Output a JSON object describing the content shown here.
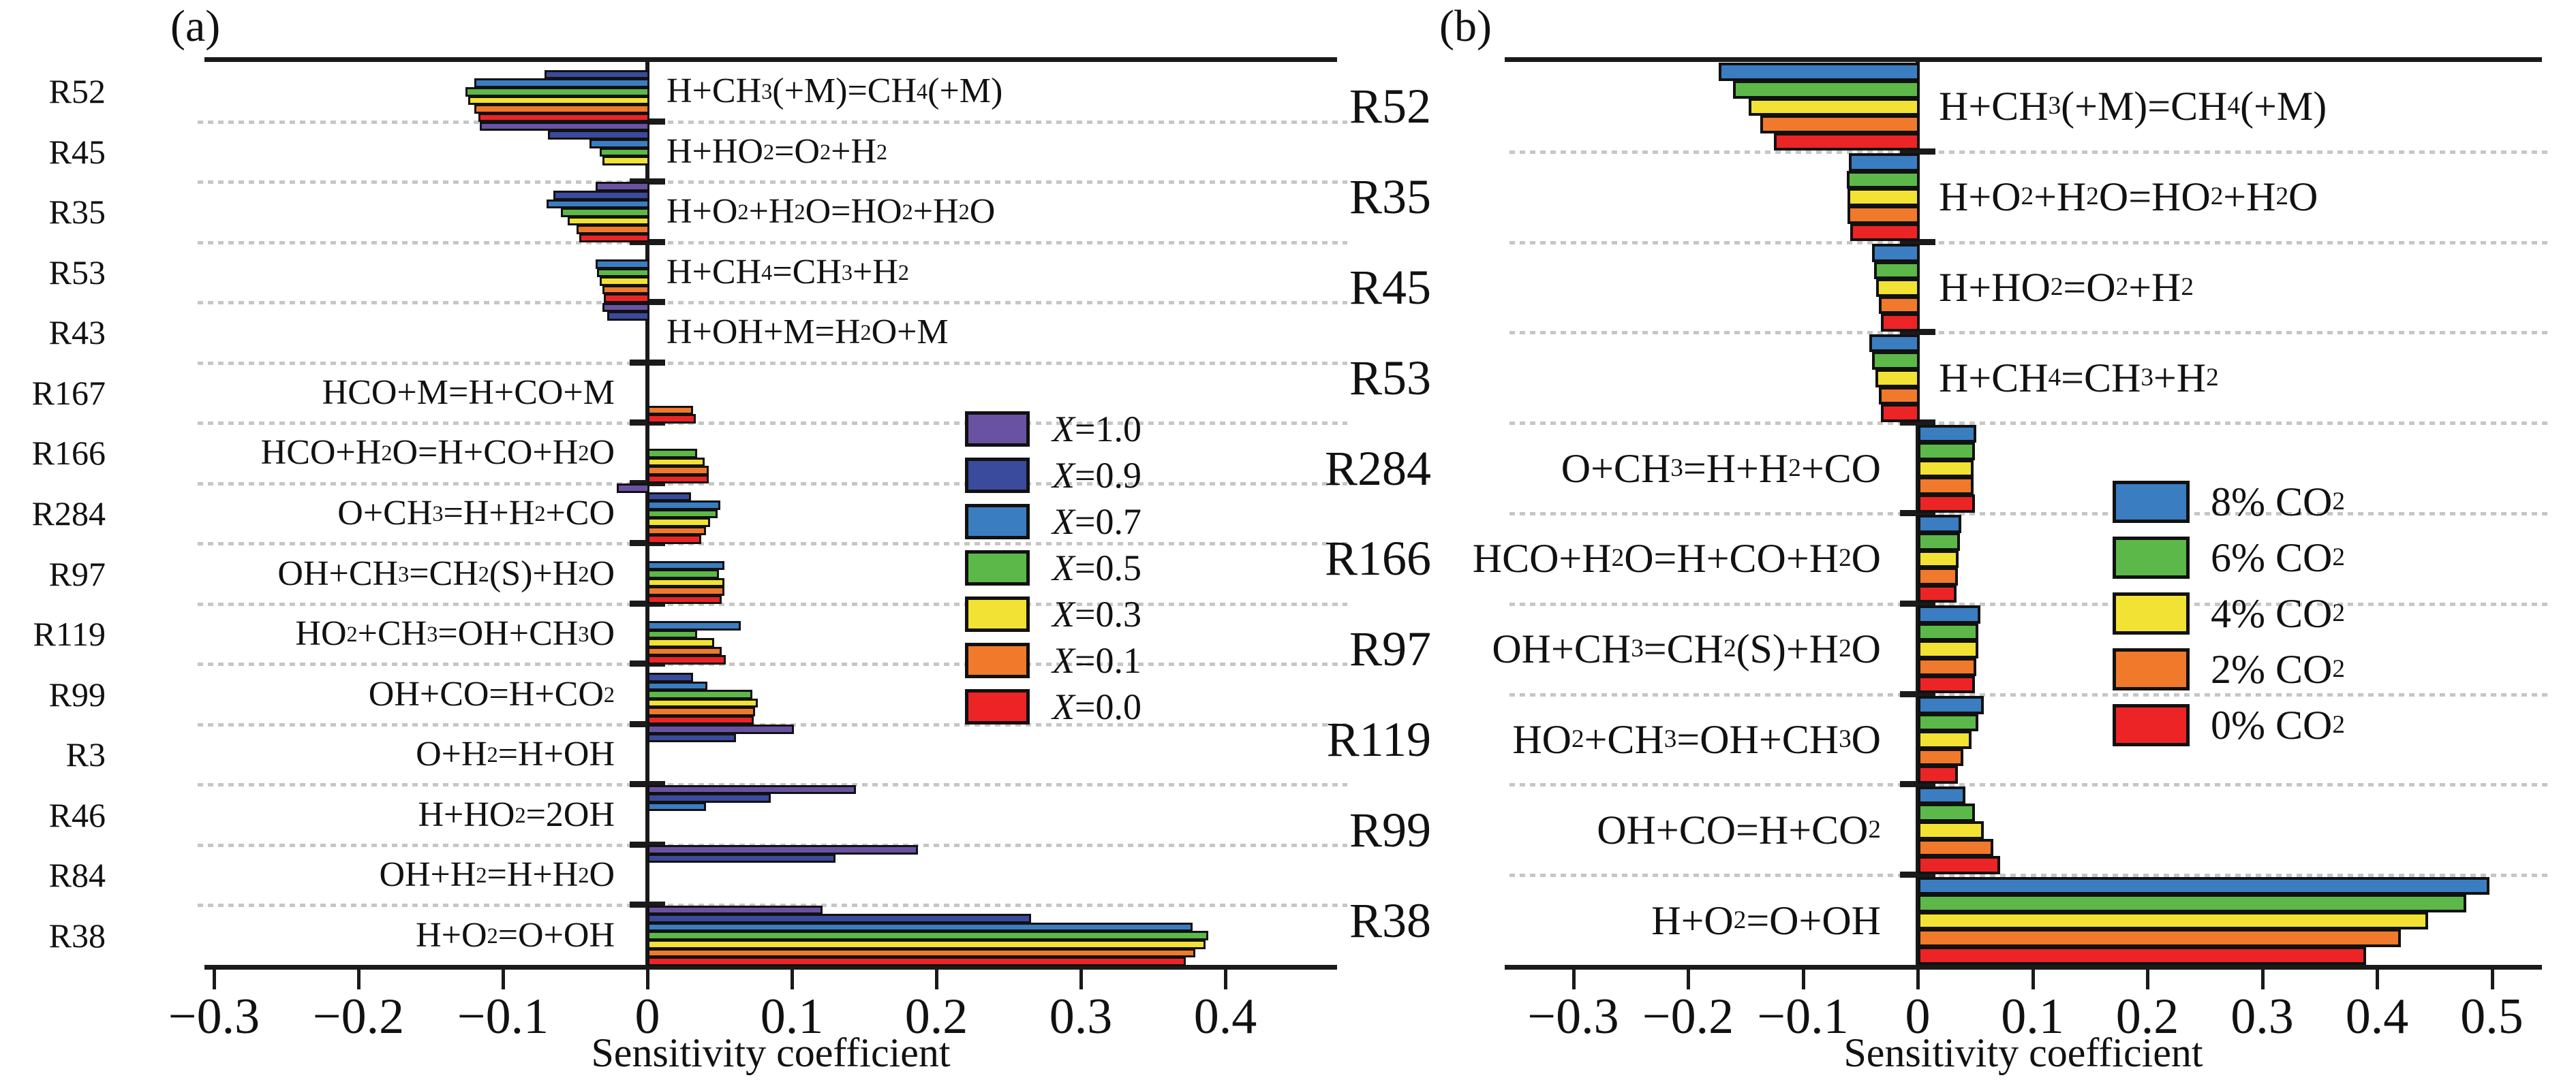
{
  "chart_data": [
    {
      "type": "bar",
      "orientation": "horizontal",
      "title": "(a)",
      "xlabel": "Sensitivity coefficient",
      "xlim": [
        -0.31,
        0.48
      ],
      "xtick_labels": [
        "−0.3",
        "−0.2",
        "−0.1",
        "0",
        "0.1",
        "0.2",
        "0.3",
        "0.4"
      ],
      "xtick_values": [
        -0.3,
        -0.2,
        -0.1,
        0,
        0.1,
        0.2,
        0.3,
        0.4
      ],
      "grid": "dotted-row-separators",
      "legend_position": "inside-right",
      "series": [
        {
          "name": "X=1.0",
          "color": "#6a52a3"
        },
        {
          "name": "X=0.9",
          "color": "#3a4a9d"
        },
        {
          "name": "X=0.7",
          "color": "#3b7dc1"
        },
        {
          "name": "X=0.5",
          "color": "#5cb848"
        },
        {
          "name": "X=0.3",
          "color": "#f2e234"
        },
        {
          "name": "X=0.1",
          "color": "#f0792b"
        },
        {
          "name": "X=0.0",
          "color": "#ec2426"
        }
      ],
      "rows": [
        {
          "id": "R52",
          "reaction": "H+CH3(+M)=CH4(+M)",
          "label_side": "right",
          "values": [
            null,
            -0.071,
            -0.12,
            -0.126,
            -0.124,
            -0.12,
            -0.117
          ]
        },
        {
          "id": "R45",
          "reaction": "H+HO2=O2+H2",
          "label_side": "right",
          "values": [
            -0.116,
            -0.069,
            -0.04,
            -0.033,
            -0.031,
            null,
            null
          ]
        },
        {
          "id": "R35",
          "reaction": "H+O2+H2O=HO2+H2O",
          "label_side": "right",
          "values": [
            -0.036,
            -0.065,
            -0.07,
            -0.06,
            -0.055,
            -0.049,
            -0.047
          ]
        },
        {
          "id": "R53",
          "reaction": "H+CH4=CH3+H2",
          "label_side": "right",
          "values": [
            null,
            null,
            -0.036,
            -0.035,
            -0.033,
            -0.031,
            -0.03
          ]
        },
        {
          "id": "R43",
          "reaction": "H+OH+M=H2O+M",
          "label_side": "right",
          "values": [
            -0.031,
            -0.028,
            null,
            null,
            null,
            null,
            null
          ]
        },
        {
          "id": "R167",
          "reaction": "HCO+M=H+CO+M",
          "label_side": "left",
          "values": [
            null,
            null,
            null,
            null,
            null,
            0.03,
            0.032
          ]
        },
        {
          "id": "R166",
          "reaction": "HCO+H2O=H+CO+H2O",
          "label_side": "left",
          "values": [
            null,
            null,
            null,
            0.033,
            0.038,
            0.041,
            0.041
          ]
        },
        {
          "id": "R284",
          "reaction": "O+CH3=H+H2+CO",
          "label_side": "left",
          "values": [
            -0.021,
            0.029,
            0.049,
            0.047,
            0.042,
            0.039,
            0.036
          ]
        },
        {
          "id": "R97",
          "reaction": "OH+CH3=CH2(S)+H2O",
          "label_side": "left",
          "values": [
            null,
            null,
            0.052,
            0.048,
            0.052,
            0.052,
            0.05
          ]
        },
        {
          "id": "R119",
          "reaction": "HO2+CH3=OH+CH3O",
          "label_side": "left",
          "values": [
            null,
            null,
            0.063,
            0.033,
            0.045,
            0.05,
            0.053
          ]
        },
        {
          "id": "R99",
          "reaction": "OH+CO=H+CO2",
          "label_side": "left",
          "values": [
            null,
            0.03,
            0.04,
            0.071,
            0.075,
            0.073,
            0.072
          ]
        },
        {
          "id": "R3",
          "reaction": "O+H2=H+OH",
          "label_side": "left",
          "values": [
            0.1,
            0.06,
            null,
            null,
            null,
            null,
            null
          ]
        },
        {
          "id": "R46",
          "reaction": "H+HO2=2OH",
          "label_side": "left",
          "values": [
            0.143,
            0.084,
            0.039,
            null,
            null,
            null,
            null
          ]
        },
        {
          "id": "R84",
          "reaction": "OH+H2=H+H2O",
          "label_side": "left",
          "values": [
            0.186,
            0.129,
            null,
            null,
            null,
            null,
            null
          ]
        },
        {
          "id": "R38",
          "reaction": "H+O2=O+OH",
          "label_side": "left",
          "values": [
            0.12,
            0.264,
            0.376,
            0.387,
            0.385,
            0.378,
            0.371
          ]
        }
      ]
    },
    {
      "type": "bar",
      "orientation": "horizontal",
      "title": "(b)",
      "xlabel": "Sensitivity coefficient",
      "xlim": [
        -0.36,
        0.545
      ],
      "xtick_labels": [
        "−0.3",
        "−0.2",
        "−0.1",
        "0",
        "0.1",
        "0.2",
        "0.3",
        "0.4",
        "0.5"
      ],
      "xtick_values": [
        -0.3,
        -0.2,
        -0.1,
        0,
        0.1,
        0.2,
        0.3,
        0.4,
        0.5
      ],
      "grid": "dotted-row-separators",
      "legend_position": "inside-right",
      "series": [
        {
          "name": "8% CO2",
          "color": "#3b7dc1"
        },
        {
          "name": "6% CO2",
          "color": "#5cb848"
        },
        {
          "name": "4% CO2",
          "color": "#f2e234"
        },
        {
          "name": "2% CO2",
          "color": "#f0792b"
        },
        {
          "name": "0% CO2",
          "color": "#ec2426"
        }
      ],
      "rows": [
        {
          "id": "R52",
          "reaction": "H+CH3(+M)=CH4(+M)",
          "label_side": "right",
          "values": [
            -0.173,
            -0.161,
            -0.147,
            -0.137,
            -0.125
          ]
        },
        {
          "id": "R35",
          "reaction": "H+O2+H2O=HO2+H2O",
          "label_side": "right",
          "values": [
            -0.06,
            -0.062,
            -0.061,
            -0.061,
            -0.059
          ]
        },
        {
          "id": "R45",
          "reaction": "H+HO2=O2+H2",
          "label_side": "right",
          "values": [
            -0.04,
            -0.038,
            -0.036,
            -0.034,
            -0.032
          ]
        },
        {
          "id": "R53",
          "reaction": "H+CH4=CH3+H2",
          "label_side": "right",
          "values": [
            -0.042,
            -0.04,
            -0.037,
            -0.034,
            -0.032
          ]
        },
        {
          "id": "R284",
          "reaction": "O+CH3=H+H2+CO",
          "label_side": "left",
          "values": [
            0.049,
            0.048,
            0.047,
            0.047,
            0.048
          ]
        },
        {
          "id": "R166",
          "reaction": "HCO+H2O=H+CO+H2O",
          "label_side": "left",
          "values": [
            0.036,
            0.035,
            0.034,
            0.033,
            0.032
          ]
        },
        {
          "id": "R97",
          "reaction": "OH+CH3=CH2(S)+H2O",
          "label_side": "left",
          "values": [
            0.053,
            0.051,
            0.051,
            0.049,
            0.048
          ]
        },
        {
          "id": "R119",
          "reaction": "HO2+CH3=OH+CH3O",
          "label_side": "left",
          "values": [
            0.056,
            0.051,
            0.045,
            0.038,
            0.033
          ]
        },
        {
          "id": "R99",
          "reaction": "OH+CO=H+CO2",
          "label_side": "left",
          "values": [
            0.04,
            0.048,
            0.056,
            0.064,
            0.07
          ]
        },
        {
          "id": "R38",
          "reaction": "H+O2=O+OH",
          "label_side": "left",
          "values": [
            0.496,
            0.476,
            0.443,
            0.419,
            0.389
          ]
        }
      ]
    }
  ],
  "style_colors": {
    "axis": "#1a1a1a",
    "bar_outline": "#111111",
    "separator_dots": "#c6c6c6",
    "background": "#ffffff"
  }
}
